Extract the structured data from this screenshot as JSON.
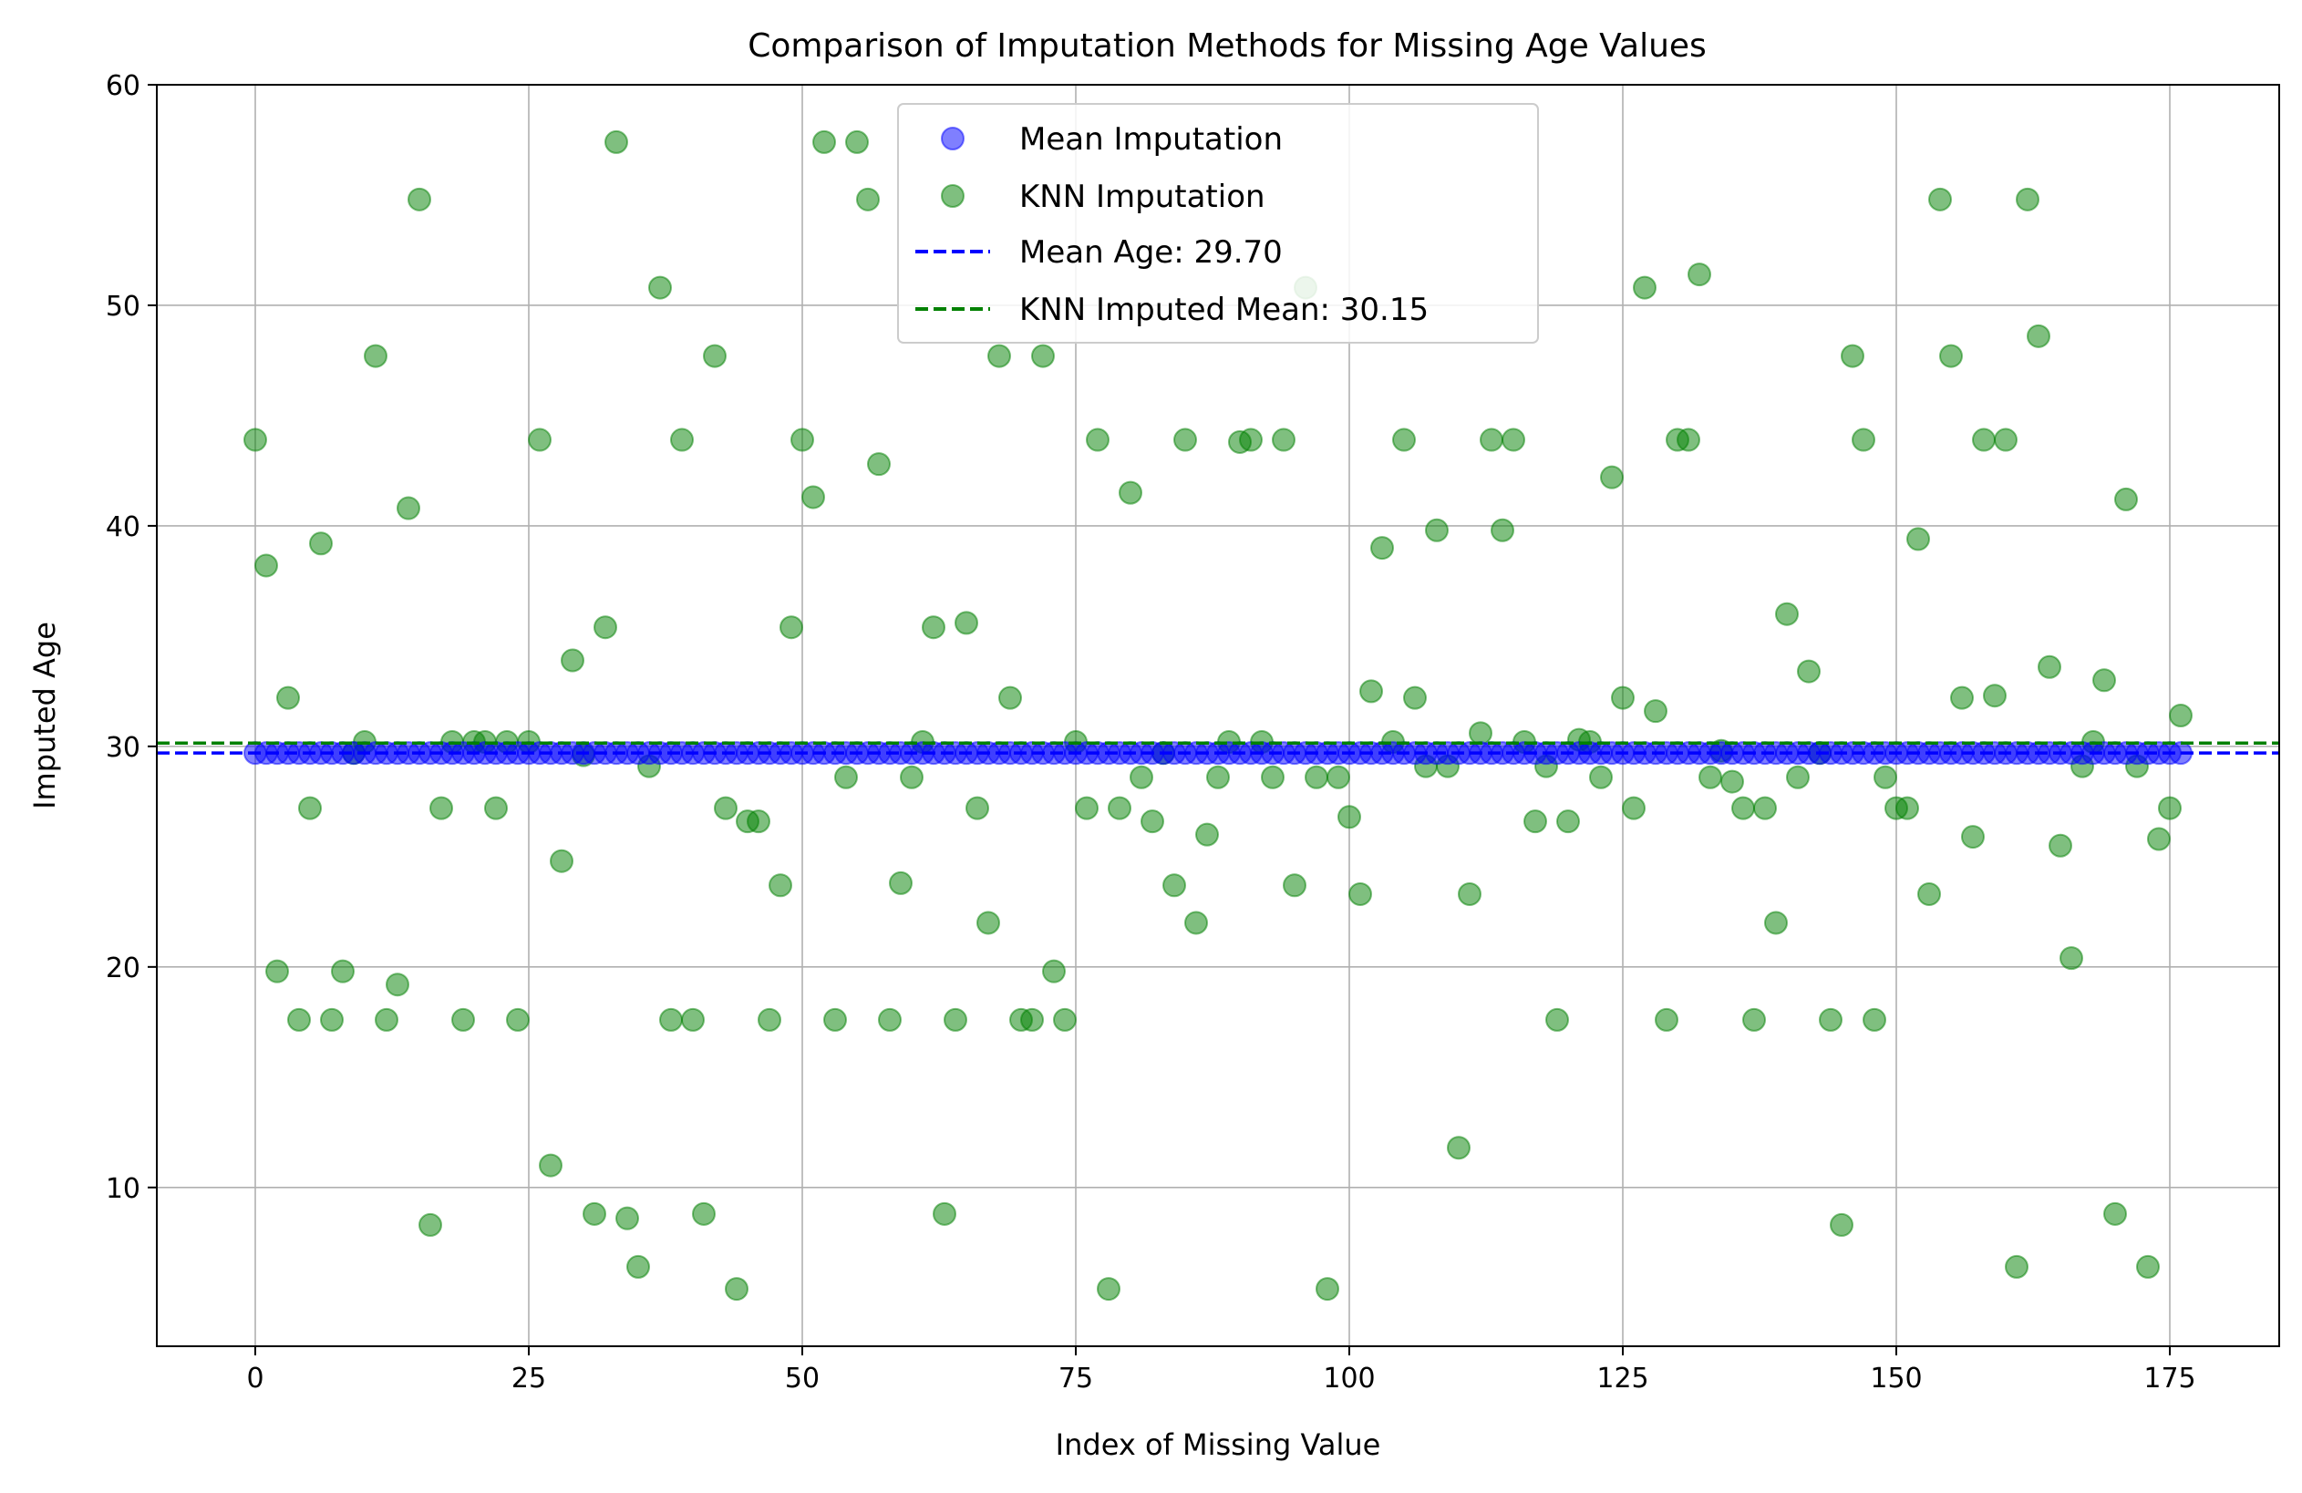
{
  "chart_data": {
    "type": "scatter",
    "title": "Comparison of Imputation Methods for Missing Age Values",
    "xlabel": "Index of Missing Value",
    "ylabel": "Imputed Age",
    "xlim": [
      -9,
      185
    ],
    "ylim": [
      2.8,
      60
    ],
    "xticks": [
      0,
      25,
      50,
      75,
      100,
      125,
      150,
      175
    ],
    "yticks": [
      10,
      20,
      30,
      40,
      50,
      60
    ],
    "grid": true,
    "legend_position": "upper-center",
    "colors": {
      "mean": "#0000ff",
      "knn": "#008000"
    },
    "mean_line": {
      "label": "Mean Age: 29.70",
      "value": 29.7
    },
    "knn_mean_line": {
      "label": "KNN Imputed Mean: 30.15",
      "value": 30.15
    },
    "series": [
      {
        "name": "Mean Imputation",
        "x": [
          0,
          1,
          2,
          3,
          4,
          5,
          6,
          7,
          8,
          9,
          10,
          11,
          12,
          13,
          14,
          15,
          16,
          17,
          18,
          19,
          20,
          21,
          22,
          23,
          24,
          25,
          26,
          27,
          28,
          29,
          30,
          31,
          32,
          33,
          34,
          35,
          36,
          37,
          38,
          39,
          40,
          41,
          42,
          43,
          44,
          45,
          46,
          47,
          48,
          49,
          50,
          51,
          52,
          53,
          54,
          55,
          56,
          57,
          58,
          59,
          60,
          61,
          62,
          63,
          64,
          65,
          66,
          67,
          68,
          69,
          70,
          71,
          72,
          73,
          74,
          75,
          76,
          77,
          78,
          79,
          80,
          81,
          82,
          83,
          84,
          85,
          86,
          87,
          88,
          89,
          90,
          91,
          92,
          93,
          94,
          95,
          96,
          97,
          98,
          99,
          100,
          101,
          102,
          103,
          104,
          105,
          106,
          107,
          108,
          109,
          110,
          111,
          112,
          113,
          114,
          115,
          116,
          117,
          118,
          119,
          120,
          121,
          122,
          123,
          124,
          125,
          126,
          127,
          128,
          129,
          130,
          131,
          132,
          133,
          134,
          135,
          136,
          137,
          138,
          139,
          140,
          141,
          142,
          143,
          144,
          145,
          146,
          147,
          148,
          149,
          150,
          151,
          152,
          153,
          154,
          155,
          156,
          157,
          158,
          159,
          160,
          161,
          162,
          163,
          164,
          165,
          166,
          167,
          168,
          169,
          170,
          171,
          172,
          173,
          174,
          175,
          176
        ],
        "y_constant": 29.7
      },
      {
        "name": "KNN Imputation",
        "x": [
          0,
          1,
          2,
          3,
          4,
          5,
          6,
          7,
          8,
          9,
          10,
          11,
          12,
          13,
          14,
          15,
          16,
          17,
          18,
          19,
          20,
          21,
          22,
          23,
          24,
          25,
          26,
          27,
          28,
          29,
          30,
          31,
          32,
          33,
          34,
          35,
          36,
          37,
          38,
          39,
          40,
          41,
          42,
          43,
          44,
          45,
          46,
          47,
          48,
          49,
          50,
          51,
          52,
          53,
          54,
          55,
          56,
          57,
          58,
          59,
          60,
          61,
          62,
          63,
          64,
          65,
          66,
          67,
          68,
          69,
          70,
          71,
          72,
          73,
          74,
          75,
          76,
          77,
          78,
          79,
          80,
          81,
          82,
          83,
          84,
          85,
          86,
          87,
          88,
          89,
          90,
          91,
          92,
          93,
          94,
          95,
          96,
          97,
          98,
          99,
          100,
          101,
          102,
          103,
          104,
          105,
          106,
          107,
          108,
          109,
          110,
          111,
          112,
          113,
          114,
          115,
          116,
          117,
          118,
          119,
          120,
          121,
          122,
          123,
          124,
          125,
          126,
          127,
          128,
          129,
          130,
          131,
          132,
          133,
          134,
          135,
          136,
          137,
          138,
          139,
          140,
          141,
          142,
          143,
          144,
          145,
          146,
          147,
          148,
          149,
          150,
          151,
          152,
          153,
          154,
          155,
          156,
          157,
          158,
          159,
          160,
          161,
          162,
          163,
          164,
          165,
          166,
          167,
          168,
          169,
          170,
          171,
          172,
          173,
          174,
          175,
          176
        ],
        "y": [
          43.9,
          38.2,
          19.8,
          32.2,
          17.6,
          27.2,
          39.2,
          17.6,
          19.8,
          29.7,
          30.2,
          47.7,
          17.6,
          19.2,
          40.8,
          54.8,
          8.3,
          27.2,
          30.2,
          17.6,
          30.2,
          30.2,
          27.2,
          30.2,
          17.6,
          30.2,
          43.9,
          11.0,
          24.8,
          33.9,
          29.6,
          8.8,
          35.4,
          57.4,
          8.6,
          6.4,
          29.1,
          50.8,
          17.6,
          43.9,
          17.6,
          8.8,
          47.7,
          27.2,
          5.4,
          26.6,
          26.6,
          17.6,
          23.7,
          35.4,
          43.9,
          41.3,
          57.4,
          17.6,
          28.6,
          57.4,
          54.8,
          42.8,
          17.6,
          23.8,
          28.6,
          30.2,
          35.4,
          8.8,
          17.6,
          35.6,
          27.2,
          22.0,
          47.7,
          32.2,
          17.6,
          17.6,
          47.7,
          19.8,
          17.6,
          30.2,
          27.2,
          43.9,
          5.4,
          27.2,
          41.5,
          28.6,
          26.6,
          29.7,
          23.7,
          43.9,
          22.0,
          26.0,
          28.6,
          30.2,
          43.8,
          43.9,
          30.2,
          28.6,
          43.9,
          23.7,
          50.8,
          28.6,
          5.4,
          28.6,
          26.8,
          23.3,
          32.5,
          39.0,
          30.2,
          43.9,
          32.2,
          29.1,
          39.8,
          29.1,
          11.8,
          23.3,
          30.6,
          43.9,
          39.8,
          43.9,
          30.2,
          26.6,
          29.1,
          17.6,
          26.6,
          30.3,
          30.2,
          28.6,
          42.2,
          32.2,
          27.2,
          50.8,
          31.6,
          17.6,
          43.9,
          43.9,
          51.4,
          28.6,
          29.8,
          28.4,
          27.2,
          17.6,
          27.2,
          22.0,
          36.0,
          28.6,
          33.4,
          29.7,
          17.6,
          8.3,
          47.7,
          43.9,
          17.6,
          28.6,
          27.2,
          27.2,
          39.4,
          23.3,
          54.8,
          47.7,
          32.2,
          25.9,
          43.9,
          32.3,
          43.9,
          6.4,
          54.8,
          48.6,
          33.6,
          25.5,
          20.4,
          29.1,
          30.2,
          33.0,
          8.8,
          41.2,
          29.1,
          6.4,
          25.8,
          27.2,
          31.4
        ]
      }
    ]
  }
}
